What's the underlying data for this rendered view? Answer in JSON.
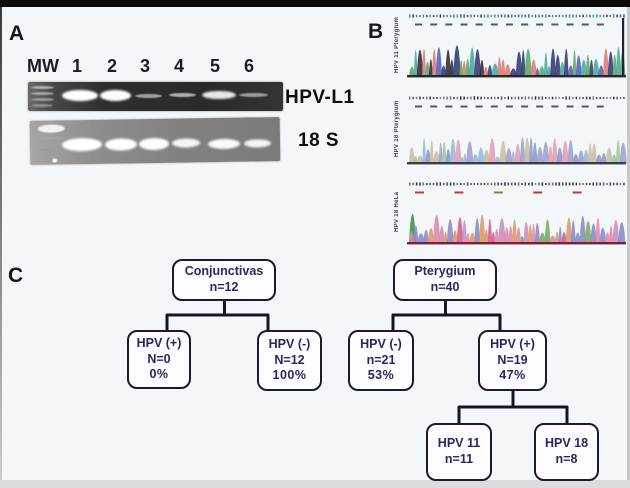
{
  "a": {
    "label": "A",
    "lanes": [
      "MW",
      "1",
      "2",
      "3",
      "4",
      "5",
      "6"
    ],
    "top_gel_label": "HPV-L1",
    "bottom_gel_label": "18 S"
  },
  "b": {
    "label": "B",
    "tracks": [
      {
        "name": "HPV 11 Pterygium",
        "peak_palette": [
          "#df7a70",
          "#5aaa62",
          "#5560b8",
          "#333a6e",
          "#4aa8a0",
          "#2a2a3a"
        ],
        "letter_palette": [
          "#2f8f7f",
          "#1f6fae",
          "#3a3a4a",
          "#2aa198"
        ],
        "num_color": [
          "#55555f"
        ],
        "num_dashes": 13,
        "baseline": "#26262e",
        "end_spike": true,
        "start_spike": false
      },
      {
        "name": "HPV 18 Pterygium",
        "peak_palette": [
          "#9ab8d8",
          "#e0a0b0",
          "#9cc89c",
          "#c8bca0",
          "#a0a0cc",
          "#8f98c4"
        ],
        "letter_palette": [
          "#55555f",
          "#333340",
          "#7a7a85"
        ],
        "num_color": [
          "#55555f"
        ],
        "num_dashes": 13,
        "baseline": "#3c3c46",
        "end_spike": false,
        "start_spike": false
      },
      {
        "name": "HPV 18 HeLa",
        "peak_palette": [
          "#e087a8",
          "#d06088",
          "#c890b8",
          "#7aa860",
          "#8a8ac8",
          "#d89a68"
        ],
        "letter_palette": [
          "#44444e",
          "#333340",
          "#66666f"
        ],
        "num_color": [
          "#c0392b",
          "#c0392b",
          "#8a8a2a",
          "#c0392b",
          "#c0392b"
        ],
        "num_dashes": 5,
        "baseline": "#7a1f35",
        "end_spike": false,
        "start_spike": true
      }
    ]
  },
  "c": {
    "label": "C",
    "nodes": {
      "conjunctivas": {
        "line1": "Conjunctivas",
        "line2": "n=12"
      },
      "pterygium": {
        "line1": "Pterygium",
        "line2": "n=40"
      },
      "conj_pos": {
        "line1": "HPV (+)",
        "line2": "N=0",
        "line3": "0%"
      },
      "conj_neg": {
        "line1": "HPV (-)",
        "line2": "N=12",
        "line3": "100%"
      },
      "pter_neg": {
        "line1": "HPV (-)",
        "line2": "n=21",
        "line3": "53%"
      },
      "pter_pos": {
        "line1": "HPV (+)",
        "line2": "N=19",
        "line3": "47%"
      },
      "hpv11": {
        "line1": "HPV 11",
        "line2": "n=11"
      },
      "hpv18": {
        "line1": "HPV 18",
        "line2": "n=8"
      }
    }
  },
  "colors": {
    "flowchart_border": "#1c1a30",
    "flowchart_text": "#2e2560",
    "connector": "#15152a",
    "frame_top": "#0b0b0b",
    "background": "#f4f7f9"
  }
}
